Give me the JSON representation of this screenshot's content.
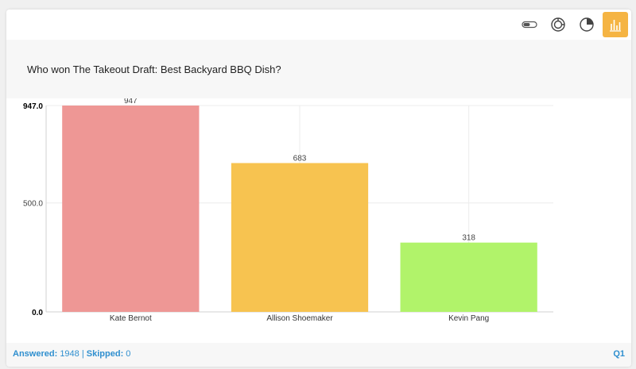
{
  "toolbar": {
    "buttons": [
      {
        "icon": "toggle-icon"
      },
      {
        "icon": "donut-chart-icon"
      },
      {
        "icon": "pie-chart-icon"
      },
      {
        "icon": "bar-chart-icon",
        "active": true
      }
    ],
    "active_color": "#f5b443"
  },
  "question": {
    "text": "Who won The Takeout Draft: Best Backyard BBQ Dish?"
  },
  "chart_data": {
    "type": "bar",
    "categories": [
      "Kate Bernot",
      "Allison Shoemaker",
      "Kevin Pang"
    ],
    "values": [
      947,
      683,
      318
    ],
    "data_labels": [
      "947",
      "683",
      "318"
    ],
    "colors": [
      "#ee9795",
      "#f7c350",
      "#b1f36a"
    ],
    "yticks": [
      {
        "value": 0,
        "label": "0.0",
        "bold": true
      },
      {
        "value": 500,
        "label": "500.0",
        "bold": false
      },
      {
        "value": 947,
        "label": "947.0",
        "bold": true
      }
    ],
    "ylim": [
      0,
      947
    ],
    "grid": true,
    "title": "",
    "xlabel": "",
    "ylabel": ""
  },
  "footer": {
    "answered_label": "Answered:",
    "answered_value": "1948",
    "separator": "|",
    "skipped_label": "Skipped:",
    "skipped_value": "0",
    "question_number": "Q1"
  }
}
